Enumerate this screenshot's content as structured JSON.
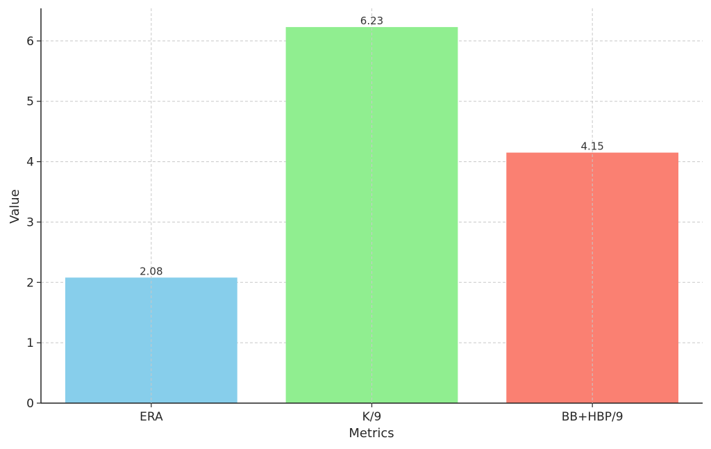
{
  "chart_data": {
    "type": "bar",
    "categories": [
      "ERA",
      "K/9",
      "BB+HBP/9"
    ],
    "values": [
      2.08,
      6.23,
      4.15
    ],
    "data_labels": [
      "2.08",
      "6.23",
      "4.15"
    ],
    "colors": [
      "#87ceeb",
      "#90ee90",
      "#fa8072"
    ],
    "title": "",
    "xlabel": "Metrics",
    "ylabel": "Value",
    "ylim": [
      0,
      6.54
    ],
    "yticks": [
      0,
      1,
      2,
      3,
      4,
      5,
      6
    ],
    "ytick_labels": [
      "0",
      "1",
      "2",
      "3",
      "4",
      "5",
      "6"
    ],
    "grid": true,
    "grid_style": "dashed"
  }
}
